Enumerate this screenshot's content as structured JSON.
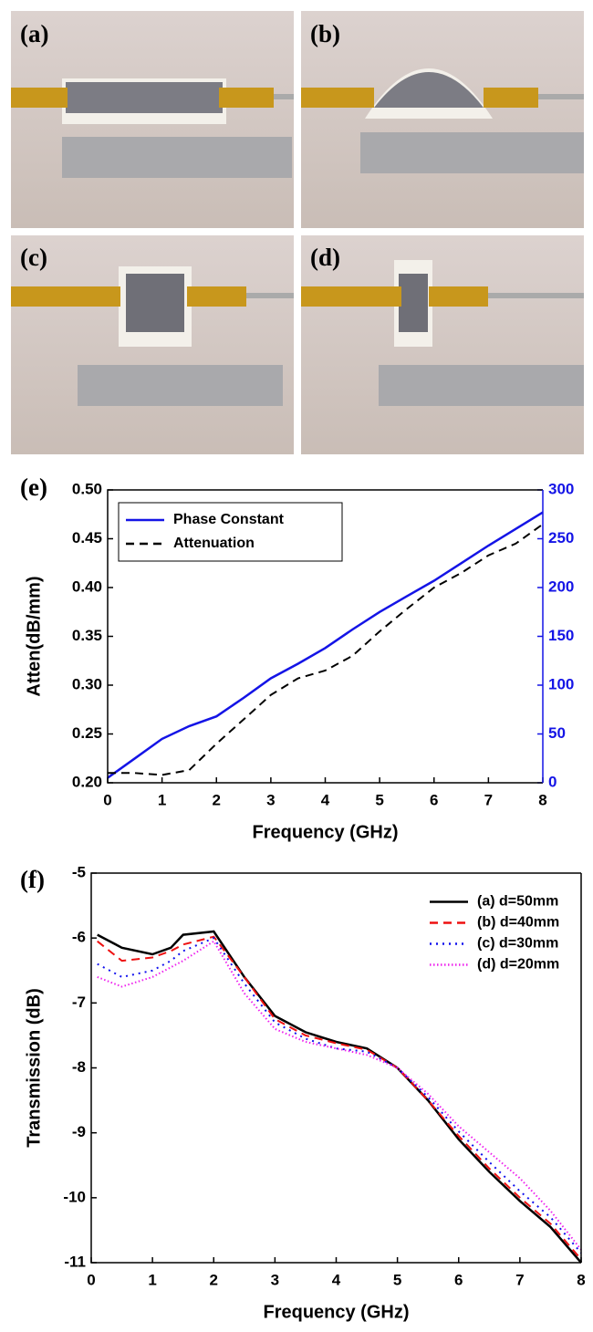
{
  "panels": [
    {
      "label": "(a)"
    },
    {
      "label": "(b)"
    },
    {
      "label": "(c)"
    },
    {
      "label": "(d)"
    }
  ],
  "chart_data": [
    {
      "type": "line",
      "label": "(e)",
      "x_label": "Frequency (GHz)",
      "y_label": "Atten(dB/mm)",
      "x": [
        0,
        0.5,
        1,
        1.5,
        2,
        2.5,
        3,
        3.5,
        4,
        4.5,
        5,
        5.5,
        6,
        6.5,
        7,
        7.5,
        8
      ],
      "xlim": [
        0,
        8
      ],
      "xticks": [
        0,
        1,
        2,
        3,
        4,
        5,
        6,
        7,
        8
      ],
      "ylim": [
        0.2,
        0.5
      ],
      "yticks": [
        {
          "value": 0.2,
          "label": "0.20"
        },
        0.25,
        {
          "value": 0.3,
          "label": "0.30"
        },
        0.35,
        {
          "value": 0.4,
          "label": "0.40"
        },
        0.45,
        {
          "value": 0.5,
          "label": "0.50"
        }
      ],
      "y2lim": [
        0,
        300
      ],
      "y2ticks": [
        0,
        50,
        100,
        150,
        200,
        250,
        300
      ],
      "legend": "upper left",
      "legend_frame": true,
      "series": [
        {
          "name": "Phase Constant",
          "color": "#1414e6",
          "style": "solid",
          "axis": "y2",
          "values": [
            5,
            25,
            45,
            58,
            68,
            87,
            107,
            122,
            138,
            157,
            175,
            191,
            207,
            225,
            243,
            260,
            277
          ]
        },
        {
          "name": "Attenuation",
          "color": "#000000",
          "style": "dashed",
          "axis": "y",
          "values": [
            0.21,
            0.21,
            0.208,
            0.213,
            0.24,
            0.265,
            0.29,
            0.307,
            0.315,
            0.33,
            0.355,
            0.378,
            0.4,
            0.415,
            0.433,
            0.445,
            0.465
          ]
        }
      ]
    },
    {
      "type": "line",
      "label": "(f)",
      "x_label": "Frequency (GHz)",
      "y_label": "Transmission (dB)",
      "x": [
        0.1,
        0.5,
        1,
        1.3,
        1.5,
        2,
        2.5,
        3,
        3.5,
        4,
        4.5,
        5,
        5.5,
        6,
        6.5,
        7,
        7.5,
        8
      ],
      "xlim": [
        0,
        8
      ],
      "xticks": [
        0,
        1,
        2,
        3,
        4,
        5,
        6,
        7,
        8
      ],
      "ylim": [
        -11,
        -5
      ],
      "yticks": [
        -11,
        -10,
        -9,
        -8,
        -7,
        -6,
        -5
      ],
      "legend": "upper right",
      "legend_frame": false,
      "series": [
        {
          "name": "(a) d=50mm",
          "color": "#000000",
          "style": "solid",
          "values": [
            -5.95,
            -6.15,
            -6.25,
            -6.15,
            -5.95,
            -5.9,
            -6.6,
            -7.2,
            -7.45,
            -7.6,
            -7.7,
            -8.0,
            -8.5,
            -9.1,
            -9.6,
            -10.05,
            -10.45,
            -11.0
          ]
        },
        {
          "name": "(b) d=40mm",
          "color": "#ee1111",
          "style": "dashed",
          "values": [
            -6.05,
            -6.35,
            -6.3,
            -6.2,
            -6.1,
            -5.98,
            -6.6,
            -7.25,
            -7.5,
            -7.62,
            -7.72,
            -8.0,
            -8.5,
            -9.05,
            -9.55,
            -10.0,
            -10.4,
            -10.95
          ]
        },
        {
          "name": "(c) d=30mm",
          "color": "#1111ee",
          "style": "dotted",
          "values": [
            -6.4,
            -6.6,
            -6.5,
            -6.35,
            -6.2,
            -6.0,
            -6.7,
            -7.3,
            -7.55,
            -7.7,
            -7.75,
            -8.0,
            -8.45,
            -8.98,
            -9.45,
            -9.9,
            -10.3,
            -10.85
          ]
        },
        {
          "name": "(d) d=20mm",
          "color": "#ee22ee",
          "style": "fine-dotted",
          "values": [
            -6.6,
            -6.75,
            -6.6,
            -6.45,
            -6.35,
            -6.05,
            -6.85,
            -7.4,
            -7.6,
            -7.7,
            -7.8,
            -8.0,
            -8.4,
            -8.9,
            -9.3,
            -9.7,
            -10.2,
            -10.8
          ]
        }
      ]
    }
  ]
}
